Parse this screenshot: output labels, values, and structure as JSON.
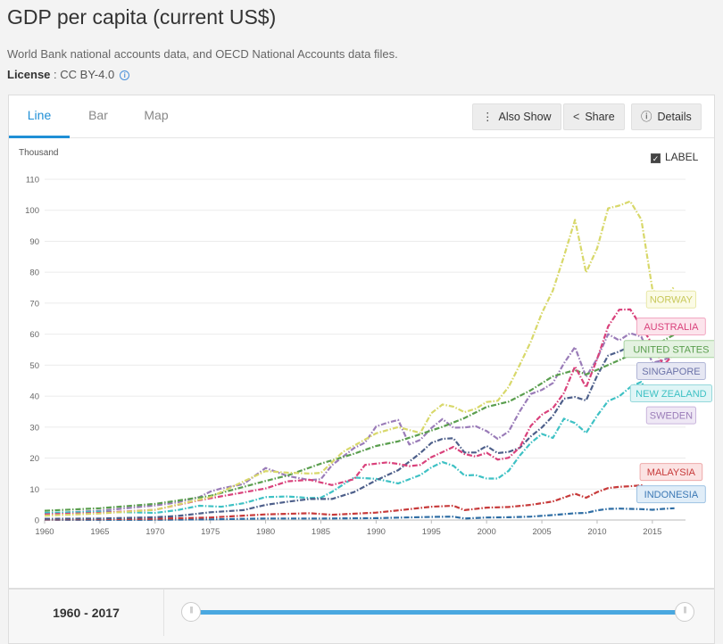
{
  "header": {
    "title": "GDP per capita (current US$)",
    "source": "World Bank national accounts data, and OECD National Accounts data files.",
    "license_label": "License",
    "license_value": " : CC BY-4.0"
  },
  "tabs": [
    {
      "label": "Line",
      "active": true
    },
    {
      "label": "Bar",
      "active": false
    },
    {
      "label": "Map",
      "active": false
    }
  ],
  "toolbar": {
    "also_show": "Also Show",
    "share": "Share",
    "details": "Details"
  },
  "label_toggle": {
    "label": "LABEL",
    "checked": true
  },
  "footer": {
    "year_start": "1960",
    "year_sep": "-",
    "year_end": "2017"
  },
  "chart_data": {
    "type": "line",
    "ylabel": "Thousand",
    "xlim": [
      1960,
      2018
    ],
    "ylim": [
      0,
      110
    ],
    "y_ticks": [
      0,
      10,
      20,
      30,
      40,
      50,
      60,
      70,
      80,
      90,
      100,
      110
    ],
    "x_ticks": [
      1960,
      1965,
      1970,
      1975,
      1980,
      1985,
      1990,
      1995,
      2000,
      2005,
      2010,
      2015
    ],
    "grid": true,
    "series": [
      {
        "name": "NORWAY",
        "color": "#d8d86a",
        "label_bg": "#fbfbe6",
        "label_border": "#e8e8a8",
        "label_color": "#c8c85a",
        "points": [
          [
            1960,
            1.4
          ],
          [
            1965,
            2.1
          ],
          [
            1970,
            3.3
          ],
          [
            1975,
            7.4
          ],
          [
            1980,
            15.8
          ],
          [
            1982,
            15.3
          ],
          [
            1984,
            15
          ],
          [
            1985,
            15.2
          ],
          [
            1987,
            22
          ],
          [
            1988,
            24
          ],
          [
            1990,
            28
          ],
          [
            1992,
            30
          ],
          [
            1994,
            28.1
          ],
          [
            1995,
            34.5
          ],
          [
            1996,
            37.3
          ],
          [
            1997,
            36.6
          ],
          [
            1998,
            34.8
          ],
          [
            1999,
            35.9
          ],
          [
            2000,
            38.1
          ],
          [
            2001,
            38.5
          ],
          [
            2002,
            43
          ],
          [
            2003,
            50.1
          ],
          [
            2004,
            57.6
          ],
          [
            2005,
            66.8
          ],
          [
            2006,
            74.1
          ],
          [
            2007,
            85.1
          ],
          [
            2008,
            96.9
          ],
          [
            2009,
            79.9
          ],
          [
            2010,
            87.7
          ],
          [
            2011,
            100.6
          ],
          [
            2012,
            101.5
          ],
          [
            2013,
            102.9
          ],
          [
            2014,
            97
          ],
          [
            2015,
            74.5
          ],
          [
            2016,
            70.5
          ],
          [
            2017,
            75.5
          ]
        ],
        "label_x": 2016.7,
        "label_y": 71.2
      },
      {
        "name": "AUSTRALIA",
        "color": "#d9417b",
        "label_bg": "#fce4ec",
        "label_border": "#f2a8c2",
        "label_color": "#d9417b",
        "points": [
          [
            1960,
            1.8
          ],
          [
            1965,
            2.3
          ],
          [
            1970,
            3.3
          ],
          [
            1974,
            6.4
          ],
          [
            1980,
            10.2
          ],
          [
            1982,
            12.5
          ],
          [
            1984,
            13
          ],
          [
            1986,
            11.3
          ],
          [
            1988,
            13.2
          ],
          [
            1989,
            17.8
          ],
          [
            1990,
            18.2
          ],
          [
            1991,
            18.6
          ],
          [
            1992,
            18.1
          ],
          [
            1993,
            17.4
          ],
          [
            1994,
            17.8
          ],
          [
            1995,
            20.3
          ],
          [
            1996,
            21.9
          ],
          [
            1997,
            23.6
          ],
          [
            1998,
            21.3
          ],
          [
            1999,
            20.5
          ],
          [
            2000,
            21.7
          ],
          [
            2001,
            19.5
          ],
          [
            2002,
            20.1
          ],
          [
            2003,
            23.5
          ],
          [
            2004,
            30.4
          ],
          [
            2005,
            34
          ],
          [
            2006,
            36.1
          ],
          [
            2007,
            41
          ],
          [
            2008,
            49.6
          ],
          [
            2009,
            42.8
          ],
          [
            2010,
            52
          ],
          [
            2011,
            62.5
          ],
          [
            2012,
            67.9
          ],
          [
            2013,
            68
          ],
          [
            2014,
            62.5
          ],
          [
            2015,
            56.7
          ],
          [
            2016,
            49.9
          ],
          [
            2017,
            53.8
          ]
        ],
        "label_x": 2016.7,
        "label_y": 62.5
      },
      {
        "name": "UNITED STATES",
        "color": "#5a9e4e",
        "label_bg": "#e4f2e1",
        "label_border": "#a8d3a0",
        "label_color": "#5a9e4e",
        "points": [
          [
            1960,
            3
          ],
          [
            1965,
            3.8
          ],
          [
            1970,
            5.2
          ],
          [
            1975,
            7.8
          ],
          [
            1980,
            12.6
          ],
          [
            1982,
            14.4
          ],
          [
            1985,
            18.2
          ],
          [
            1988,
            21.4
          ],
          [
            1990,
            23.9
          ],
          [
            1992,
            25.4
          ],
          [
            1994,
            27.7
          ],
          [
            1996,
            30.1
          ],
          [
            1998,
            32.9
          ],
          [
            2000,
            36.5
          ],
          [
            2002,
            38.2
          ],
          [
            2004,
            41.9
          ],
          [
            2006,
            46.4
          ],
          [
            2008,
            48.4
          ],
          [
            2009,
            47
          ],
          [
            2010,
            48.5
          ],
          [
            2012,
            51.6
          ],
          [
            2014,
            55
          ],
          [
            2016,
            57.9
          ],
          [
            2017,
            59.9
          ]
        ],
        "label_x": 2016.7,
        "label_y": 55.2
      },
      {
        "name": "SINGAPORE",
        "color": "#4d5f8a",
        "label_bg": "#e6e7f3",
        "label_border": "#b1b6d6",
        "label_color": "#6b72a8",
        "points": [
          [
            1960,
            0.4
          ],
          [
            1965,
            0.5
          ],
          [
            1970,
            0.9
          ],
          [
            1972,
            1.3
          ],
          [
            1975,
            2.5
          ],
          [
            1978,
            3.2
          ],
          [
            1980,
            4.9
          ],
          [
            1982,
            5.9
          ],
          [
            1984,
            6.8
          ],
          [
            1985,
            6.8
          ],
          [
            1986,
            6.8
          ],
          [
            1988,
            9
          ],
          [
            1990,
            12.8
          ],
          [
            1992,
            16.1
          ],
          [
            1994,
            21.6
          ],
          [
            1995,
            24.9
          ],
          [
            1996,
            26.2
          ],
          [
            1997,
            26.4
          ],
          [
            1998,
            21.8
          ],
          [
            1999,
            21.8
          ],
          [
            2000,
            23.9
          ],
          [
            2001,
            21.6
          ],
          [
            2002,
            22
          ],
          [
            2003,
            23.3
          ],
          [
            2004,
            27
          ],
          [
            2005,
            29.9
          ],
          [
            2006,
            33.6
          ],
          [
            2007,
            39.2
          ],
          [
            2008,
            39.7
          ],
          [
            2009,
            38.6
          ],
          [
            2010,
            46.6
          ],
          [
            2011,
            53.1
          ],
          [
            2012,
            54.4
          ],
          [
            2013,
            56
          ],
          [
            2014,
            56.3
          ],
          [
            2015,
            55.6
          ],
          [
            2016,
            56.8
          ],
          [
            2017,
            57.7
          ]
        ],
        "label_x": 2016.7,
        "label_y": 48.1
      },
      {
        "name": "NEW ZEALAND",
        "color": "#3ec1c4",
        "label_bg": "#dff5f6",
        "label_border": "#96d9db",
        "label_color": "#3ec1c4",
        "points": [
          [
            1960,
            2.3
          ],
          [
            1965,
            2.7
          ],
          [
            1970,
            2.3
          ],
          [
            1972,
            3.2
          ],
          [
            1974,
            4.6
          ],
          [
            1976,
            4.3
          ],
          [
            1978,
            5.4
          ],
          [
            1980,
            7.4
          ],
          [
            1982,
            7.6
          ],
          [
            1984,
            7.1
          ],
          [
            1985,
            7.2
          ],
          [
            1986,
            9.1
          ],
          [
            1988,
            13.7
          ],
          [
            1990,
            13.3
          ],
          [
            1992,
            11.8
          ],
          [
            1994,
            14.5
          ],
          [
            1995,
            17
          ],
          [
            1996,
            18.7
          ],
          [
            1997,
            17.5
          ],
          [
            1998,
            14.4
          ],
          [
            1999,
            14.5
          ],
          [
            2000,
            13.4
          ],
          [
            2001,
            13.4
          ],
          [
            2002,
            15.9
          ],
          [
            2003,
            20.8
          ],
          [
            2004,
            24.9
          ],
          [
            2005,
            27.8
          ],
          [
            2006,
            26.5
          ],
          [
            2007,
            32.7
          ],
          [
            2008,
            31.3
          ],
          [
            2009,
            28.1
          ],
          [
            2010,
            33.7
          ],
          [
            2011,
            38.4
          ],
          [
            2012,
            39.9
          ],
          [
            2013,
            42.9
          ],
          [
            2014,
            44.6
          ],
          [
            2015,
            38.6
          ],
          [
            2016,
            39.4
          ],
          [
            2017,
            42.2
          ]
        ],
        "label_x": 2016.7,
        "label_y": 40.9
      },
      {
        "name": "SWEDEN",
        "color": "#9a7cb8",
        "label_bg": "#efe8f5",
        "label_border": "#c9b5dc",
        "label_color": "#9a7cb8",
        "points": [
          [
            1960,
            2.1
          ],
          [
            1965,
            3
          ],
          [
            1970,
            4.7
          ],
          [
            1972,
            5.7
          ],
          [
            1974,
            7.4
          ],
          [
            1975,
            9.2
          ],
          [
            1976,
            10.2
          ],
          [
            1978,
            11.6
          ],
          [
            1980,
            16.8
          ],
          [
            1982,
            14.2
          ],
          [
            1984,
            12.9
          ],
          [
            1985,
            13.2
          ],
          [
            1986,
            17.7
          ],
          [
            1988,
            23.2
          ],
          [
            1989,
            25
          ],
          [
            1990,
            30.2
          ],
          [
            1991,
            31.4
          ],
          [
            1992,
            32.3
          ],
          [
            1993,
            24.4
          ],
          [
            1994,
            25.9
          ],
          [
            1995,
            29.7
          ],
          [
            1996,
            32.6
          ],
          [
            1997,
            29.8
          ],
          [
            1998,
            29.9
          ],
          [
            1999,
            30.3
          ],
          [
            2000,
            28.7
          ],
          [
            2001,
            26.2
          ],
          [
            2002,
            28.6
          ],
          [
            2003,
            35.1
          ],
          [
            2004,
            40.7
          ],
          [
            2005,
            42
          ],
          [
            2006,
            44.2
          ],
          [
            2007,
            50.6
          ],
          [
            2008,
            55.8
          ],
          [
            2009,
            46.2
          ],
          [
            2010,
            52.1
          ],
          [
            2011,
            60
          ],
          [
            2012,
            58
          ],
          [
            2013,
            60.3
          ],
          [
            2014,
            59.2
          ],
          [
            2015,
            50.8
          ],
          [
            2016,
            51.6
          ],
          [
            2017,
            53.4
          ]
        ],
        "label_x": 2016.7,
        "label_y": 33.8
      },
      {
        "name": "MALAYSIA",
        "color": "#c73a3a",
        "label_bg": "#fbe3e3",
        "label_border": "#eea9a9",
        "label_color": "#c73a3a",
        "points": [
          [
            1960,
            0.2
          ],
          [
            1965,
            0.3
          ],
          [
            1970,
            0.4
          ],
          [
            1975,
            0.8
          ],
          [
            1980,
            1.8
          ],
          [
            1984,
            2.2
          ],
          [
            1986,
            1.7
          ],
          [
            1990,
            2.4
          ],
          [
            1992,
            3.1
          ],
          [
            1995,
            4.3
          ],
          [
            1997,
            4.6
          ],
          [
            1998,
            3.2
          ],
          [
            2000,
            4
          ],
          [
            2002,
            4.2
          ],
          [
            2004,
            4.9
          ],
          [
            2006,
            6
          ],
          [
            2008,
            8.5
          ],
          [
            2009,
            7.2
          ],
          [
            2010,
            9
          ],
          [
            2011,
            10.3
          ],
          [
            2012,
            10.7
          ],
          [
            2013,
            10.9
          ],
          [
            2014,
            11.2
          ],
          [
            2015,
            9.6
          ],
          [
            2016,
            9.5
          ],
          [
            2017,
            9.9
          ]
        ],
        "label_x": 2016.7,
        "label_y": 15.5
      },
      {
        "name": "INDONESIA",
        "color": "#2e6da4",
        "label_bg": "#e0edf8",
        "label_border": "#9ec2e3",
        "label_color": "#3b78b5",
        "points": [
          [
            1960,
            0.1
          ],
          [
            1967,
            0.05
          ],
          [
            1970,
            0.1
          ],
          [
            1975,
            0.2
          ],
          [
            1980,
            0.5
          ],
          [
            1985,
            0.5
          ],
          [
            1990,
            0.6
          ],
          [
            1995,
            1
          ],
          [
            1997,
            1.1
          ],
          [
            1998,
            0.5
          ],
          [
            2000,
            0.8
          ],
          [
            2002,
            0.9
          ],
          [
            2004,
            1.1
          ],
          [
            2006,
            1.6
          ],
          [
            2008,
            2.2
          ],
          [
            2009,
            2.3
          ],
          [
            2010,
            3.1
          ],
          [
            2011,
            3.6
          ],
          [
            2012,
            3.7
          ],
          [
            2013,
            3.6
          ],
          [
            2014,
            3.5
          ],
          [
            2015,
            3.3
          ],
          [
            2016,
            3.6
          ],
          [
            2017,
            3.8
          ]
        ],
        "label_x": 2016.7,
        "label_y": 8.3
      }
    ]
  }
}
